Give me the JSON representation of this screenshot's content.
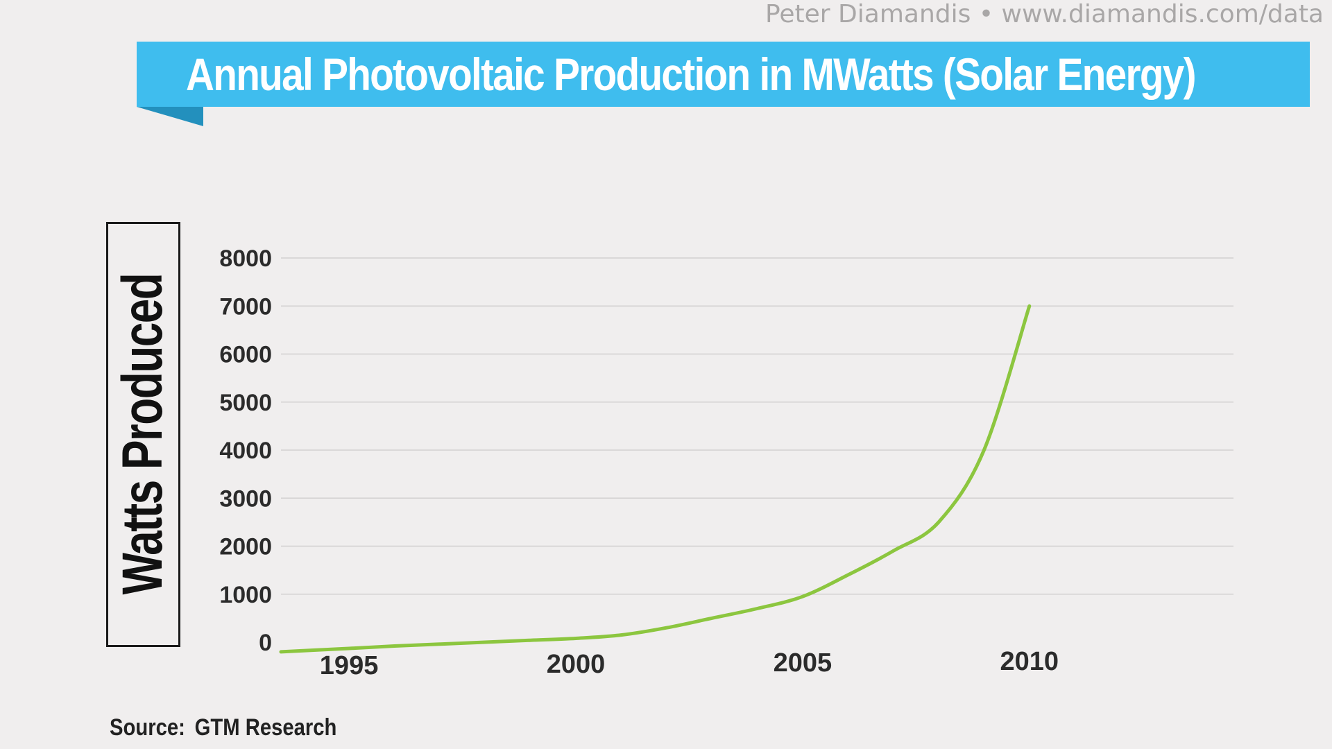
{
  "credit": "Peter Diamandis  •  www.diamandis.com/data",
  "banner_color": "#3fbdee",
  "banner_tail_color": "#2390bd",
  "source": {
    "label": "Source:",
    "value": "GTM Research"
  },
  "chart_data": {
    "type": "line",
    "title": "Annual Photovoltaic Production in MWatts (Solar Energy)",
    "xlabel": "",
    "ylabel": "Watts Produced",
    "x_ticks": [
      1995,
      2000,
      2005,
      2010
    ],
    "y_ticks": [
      0,
      1000,
      2000,
      3000,
      4000,
      5000,
      6000,
      7000,
      8000
    ],
    "xlim": [
      1993.5,
      2014.5
    ],
    "ylim": [
      0,
      8000
    ],
    "grid": true,
    "series": [
      {
        "color": "#8cc63f",
        "x": [
          1993.5,
          1995,
          1996,
          1997,
          1998,
          1999,
          2000,
          2001,
          2002,
          2003,
          2004,
          2005,
          2006,
          2007,
          2008,
          2009,
          2010
        ],
        "values": [
          -200,
          -130,
          -80,
          -40,
          0,
          40,
          80,
          150,
          300,
          500,
          700,
          950,
          1400,
          1900,
          2500,
          4000,
          7000
        ]
      }
    ]
  }
}
